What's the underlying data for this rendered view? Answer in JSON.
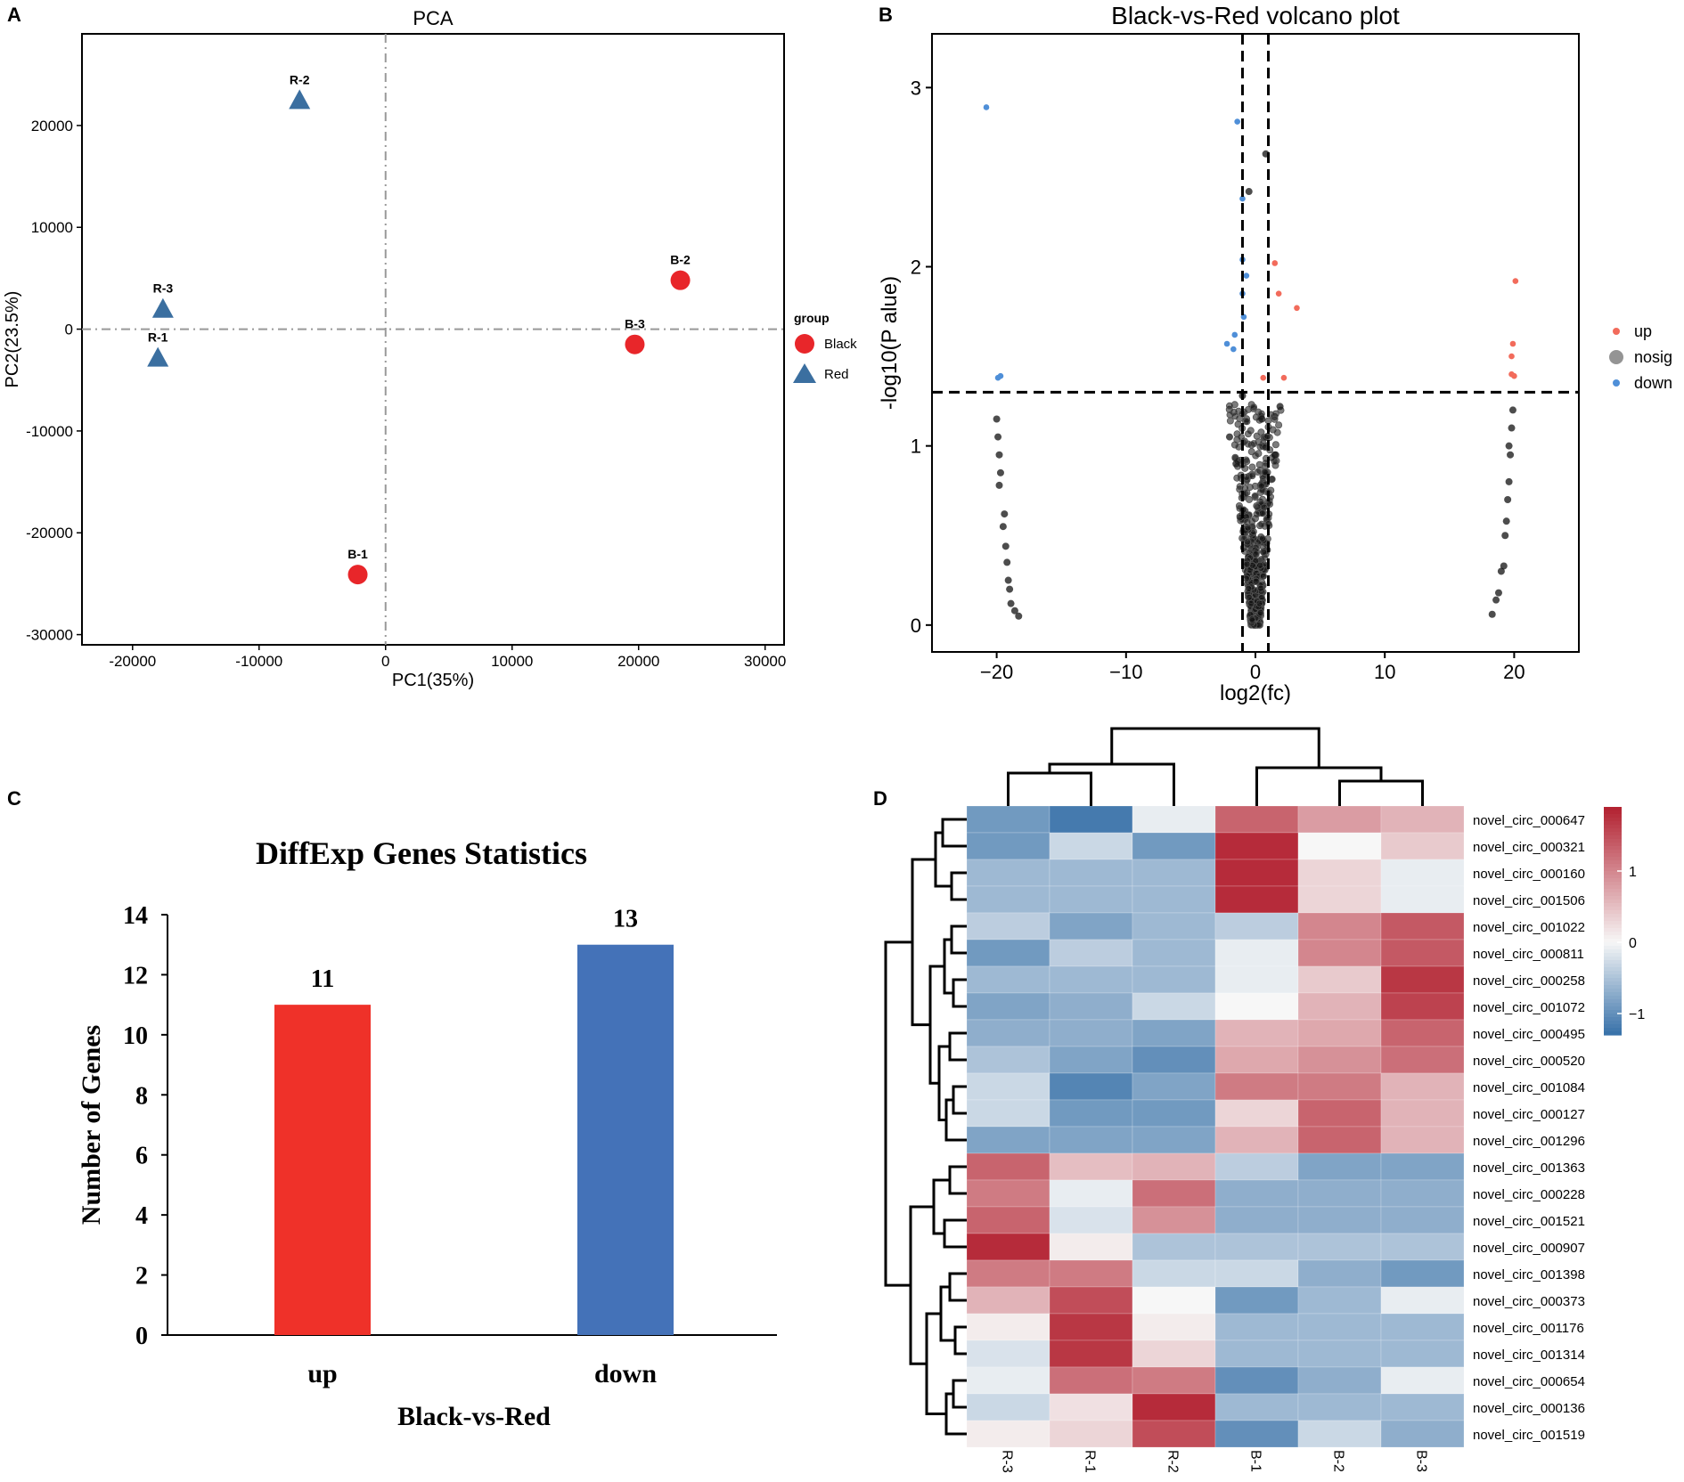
{
  "panels": {
    "a": {
      "letter": "A"
    },
    "b": {
      "letter": "B"
    },
    "c": {
      "letter": "C"
    },
    "d": {
      "letter": "D"
    }
  },
  "chart_data": [
    {
      "id": "pca",
      "type": "scatter",
      "title": "PCA",
      "xlabel": "PC1(35%)",
      "ylabel": "PC2(23.5%)",
      "xlim": [
        -24000,
        31500
      ],
      "ylim": [
        -31000,
        29000
      ],
      "xticks": [
        -20000,
        -10000,
        0,
        10000,
        20000,
        30000
      ],
      "yticks": [
        -30000,
        -20000,
        -10000,
        0,
        10000,
        20000
      ],
      "legend_title": "group",
      "legend_position": "right",
      "series": [
        {
          "name": "Black",
          "marker": "circle",
          "color": "#e8262a",
          "points": [
            {
              "label": "B-1",
              "x": -2200,
              "y": -24100
            },
            {
              "label": "B-2",
              "x": 23300,
              "y": 4800
            },
            {
              "label": "B-3",
              "x": 19700,
              "y": -1500
            }
          ]
        },
        {
          "name": "Red",
          "marker": "triangle",
          "color": "#3b6fa0",
          "points": [
            {
              "label": "R-1",
              "x": -18000,
              "y": -2800
            },
            {
              "label": "R-2",
              "x": -6800,
              "y": 22500
            },
            {
              "label": "R-3",
              "x": -17600,
              "y": 2000
            }
          ]
        }
      ]
    },
    {
      "id": "volcano",
      "type": "scatter",
      "title": "Black-vs-Red volcano plot",
      "xlabel": "log2(fc)",
      "ylabel": "-log10(P   alue)",
      "xlim": [
        -25,
        25
      ],
      "ylim": [
        -0.15,
        3.3
      ],
      "xticks": [
        -20,
        -10,
        0,
        10,
        20
      ],
      "yticks": [
        0,
        1,
        2,
        3
      ],
      "thresholds": {
        "x": [
          -1,
          1
        ],
        "y": 1.3
      },
      "legend_position": "right",
      "series": [
        {
          "name": "up",
          "color": "#f26b5b",
          "points": [
            [
              1.5,
              2.02
            ],
            [
              1.8,
              1.85
            ],
            [
              3.2,
              1.77
            ],
            [
              0.6,
              1.38
            ],
            [
              2.2,
              1.38
            ],
            [
              20.1,
              1.92
            ],
            [
              19.9,
              1.57
            ],
            [
              19.8,
              1.5
            ],
            [
              19.8,
              1.4
            ],
            [
              20.0,
              1.39
            ]
          ]
        },
        {
          "name": "nosig",
          "color": "#111111",
          "points": [
            [
              -20,
              1.15
            ],
            [
              -19.9,
              1.05
            ],
            [
              -19.8,
              0.95
            ],
            [
              -19.7,
              0.85
            ],
            [
              -19.8,
              0.78
            ],
            [
              -19.4,
              0.62
            ],
            [
              -19.5,
              0.55
            ],
            [
              -19.3,
              0.44
            ],
            [
              -19.2,
              0.35
            ],
            [
              -19.1,
              0.25
            ],
            [
              -19.0,
              0.2
            ],
            [
              -18.9,
              0.12
            ],
            [
              -18.6,
              0.08
            ],
            [
              -18.3,
              0.05
            ],
            [
              18.3,
              0.06
            ],
            [
              18.6,
              0.14
            ],
            [
              18.8,
              0.18
            ],
            [
              19.0,
              0.3
            ],
            [
              19.2,
              0.33
            ],
            [
              19.3,
              0.5
            ],
            [
              19.4,
              0.58
            ],
            [
              19.5,
              0.7
            ],
            [
              19.6,
              0.8
            ],
            [
              19.7,
              0.95
            ],
            [
              19.8,
              1.1
            ],
            [
              19.9,
              1.2
            ],
            [
              19.6,
              1.0
            ],
            [
              -1.0,
              1.28
            ],
            [
              -0.5,
              2.42
            ],
            [
              0.8,
              2.63
            ],
            [
              -2.0,
              1.05
            ],
            [
              1.9,
              1.22
            ],
            [
              -1.5,
              0.9
            ],
            [
              1.5,
              0.95
            ],
            [
              0.5,
              1.15
            ]
          ]
        },
        {
          "name": "down",
          "color": "#4f8fd8",
          "points": [
            [
              -20.8,
              2.89
            ],
            [
              -1.4,
              2.81
            ],
            [
              -1.0,
              2.38
            ],
            [
              -1.0,
              2.04
            ],
            [
              -0.7,
              1.95
            ],
            [
              -1.0,
              1.85
            ],
            [
              -0.9,
              1.72
            ],
            [
              -1.6,
              1.62
            ],
            [
              -2.2,
              1.57
            ],
            [
              -1.7,
              1.54
            ],
            [
              -19.7,
              1.39
            ],
            [
              -19.9,
              1.38
            ]
          ]
        }
      ]
    },
    {
      "id": "diffexp",
      "type": "bar",
      "title": "DiffExp Genes Statistics",
      "xlabel": "Black-vs-Red",
      "ylabel": "Number of Genes",
      "categories": [
        "up",
        "down"
      ],
      "values": [
        11,
        13
      ],
      "colors": [
        "#ef3129",
        "#4472b8"
      ],
      "ylim": [
        0,
        14
      ],
      "yticks": [
        0,
        2,
        4,
        6,
        8,
        10,
        12,
        14
      ]
    },
    {
      "id": "heatmap",
      "type": "heatmap",
      "columns": [
        "R-3",
        "R-1",
        "R-2",
        "B-1",
        "B-2",
        "B-3"
      ],
      "rows": [
        "novel_circ_000647",
        "novel_circ_000321",
        "novel_circ_000160",
        "novel_circ_001506",
        "novel_circ_001022",
        "novel_circ_000811",
        "novel_circ_000258",
        "novel_circ_001072",
        "novel_circ_000495",
        "novel_circ_000520",
        "novel_circ_001084",
        "novel_circ_000127",
        "novel_circ_001296",
        "novel_circ_001363",
        "novel_circ_000228",
        "novel_circ_001521",
        "novel_circ_000907",
        "novel_circ_001398",
        "novel_circ_000373",
        "novel_circ_001176",
        "novel_circ_001314",
        "novel_circ_000654",
        "novel_circ_000136",
        "novel_circ_001519"
      ],
      "values": [
        [
          -0.9,
          -1.2,
          -0.1,
          1.3,
          0.8,
          0.6
        ],
        [
          -0.9,
          -0.3,
          -0.9,
          1.8,
          0.0,
          0.4
        ],
        [
          -0.6,
          -0.6,
          -0.6,
          1.8,
          0.3,
          -0.1
        ],
        [
          -0.6,
          -0.6,
          -0.6,
          1.8,
          0.3,
          -0.1
        ],
        [
          -0.4,
          -0.8,
          -0.6,
          -0.4,
          1.0,
          1.4
        ],
        [
          -0.9,
          -0.4,
          -0.6,
          -0.1,
          1.0,
          1.4
        ],
        [
          -0.6,
          -0.6,
          -0.6,
          -0.1,
          0.4,
          1.7
        ],
        [
          -0.8,
          -0.7,
          -0.3,
          0.0,
          0.6,
          1.6
        ],
        [
          -0.7,
          -0.7,
          -0.8,
          0.6,
          0.7,
          1.3
        ],
        [
          -0.5,
          -0.8,
          -1.0,
          0.7,
          0.9,
          1.2
        ],
        [
          -0.3,
          -1.1,
          -0.8,
          1.1,
          1.1,
          0.6
        ],
        [
          -0.3,
          -0.9,
          -0.9,
          0.3,
          1.3,
          0.6
        ],
        [
          -0.8,
          -0.8,
          -0.8,
          0.6,
          1.3,
          0.6
        ],
        [
          1.3,
          0.5,
          0.6,
          -0.4,
          -0.8,
          -0.8
        ],
        [
          1.1,
          -0.1,
          1.2,
          -0.7,
          -0.7,
          -0.7
        ],
        [
          1.3,
          -0.2,
          0.9,
          -0.7,
          -0.7,
          -0.7
        ],
        [
          1.8,
          0.1,
          -0.5,
          -0.5,
          -0.5,
          -0.5
        ],
        [
          1.1,
          1.1,
          -0.3,
          -0.3,
          -0.7,
          -0.9
        ],
        [
          0.6,
          1.5,
          0.0,
          -0.9,
          -0.6,
          -0.1
        ],
        [
          0.1,
          1.7,
          0.1,
          -0.6,
          -0.6,
          -0.6
        ],
        [
          -0.2,
          1.7,
          0.3,
          -0.6,
          -0.6,
          -0.6
        ],
        [
          -0.1,
          1.2,
          1.1,
          -1.0,
          -0.7,
          -0.1
        ],
        [
          -0.3,
          0.2,
          1.8,
          -0.6,
          -0.6,
          -0.6
        ],
        [
          0.1,
          0.3,
          1.5,
          -1.0,
          -0.3,
          -0.7
        ]
      ],
      "colorbar_ticks": [
        1,
        0,
        -1
      ],
      "colorbar_tick_labels": [
        "1",
        "0",
        "−1"
      ],
      "colorbar_range": [
        -1.3,
        1.9
      ],
      "colors": {
        "low": "#3670a8",
        "mid": "#f7f7f7",
        "high": "#b2202f"
      }
    }
  ]
}
